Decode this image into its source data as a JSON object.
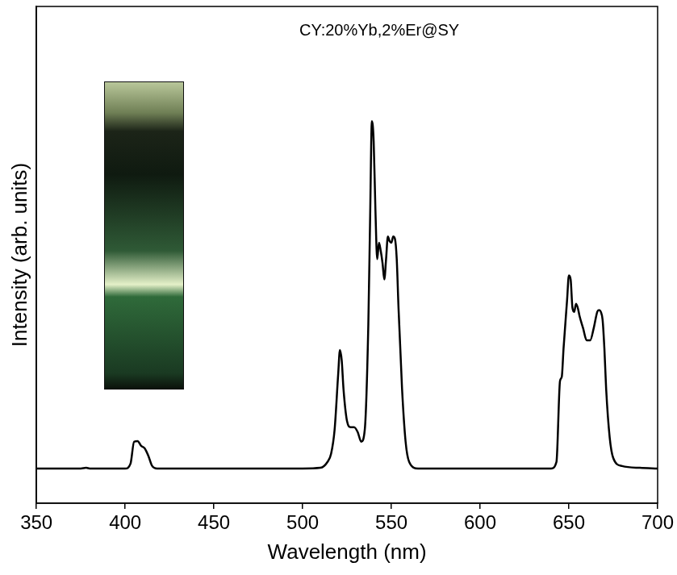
{
  "chart_data": {
    "type": "line",
    "title": "CY:20%Yb,2%Er@SY",
    "x_label": "Wavelength (nm)",
    "y_label": "Intensity (arb. units)",
    "x": [
      350,
      375,
      378,
      380,
      400,
      403,
      405,
      407,
      409,
      411,
      413,
      415,
      418,
      450,
      500,
      510,
      514,
      516,
      518,
      520,
      521,
      522,
      523,
      525,
      527,
      529,
      531,
      533,
      535,
      537,
      538,
      539,
      540,
      541,
      542,
      543,
      544,
      545,
      546,
      547,
      548,
      549,
      550,
      551,
      552,
      553,
      554,
      556,
      558,
      560,
      565,
      600,
      640,
      643,
      645,
      646,
      647,
      649,
      650,
      651,
      652,
      653,
      654,
      655,
      656,
      658,
      660,
      662,
      664,
      666,
      667,
      668,
      669,
      670,
      671,
      673,
      675,
      680,
      690,
      700
    ],
    "values": [
      0,
      0,
      0.002,
      0,
      0,
      0.014,
      0.077,
      0.079,
      0.065,
      0.058,
      0.037,
      0.009,
      0,
      0,
      0,
      0.002,
      0.019,
      0.042,
      0.112,
      0.271,
      0.341,
      0.311,
      0.229,
      0.136,
      0.119,
      0.119,
      0.105,
      0.077,
      0.112,
      0.416,
      0.72,
      1.0,
      0.942,
      0.743,
      0.603,
      0.65,
      0.626,
      0.591,
      0.544,
      0.603,
      0.668,
      0.654,
      0.65,
      0.668,
      0.661,
      0.603,
      0.463,
      0.229,
      0.077,
      0.019,
      0,
      0,
      0,
      0.019,
      0.252,
      0.264,
      0.346,
      0.486,
      0.556,
      0.544,
      0.463,
      0.451,
      0.474,
      0.463,
      0.439,
      0.404,
      0.369,
      0.369,
      0.404,
      0.451,
      0.456,
      0.451,
      0.428,
      0.346,
      0.229,
      0.089,
      0.03,
      0.007,
      0.002,
      0
    ],
    "color": "#000000",
    "xlim": [
      350,
      700
    ],
    "xticks": [
      350,
      400,
      450,
      500,
      550,
      600,
      650,
      700
    ],
    "ylim": [
      -0.1,
      1.33
    ],
    "yticks": [],
    "grid": false,
    "tick_labels": "x"
  }
}
